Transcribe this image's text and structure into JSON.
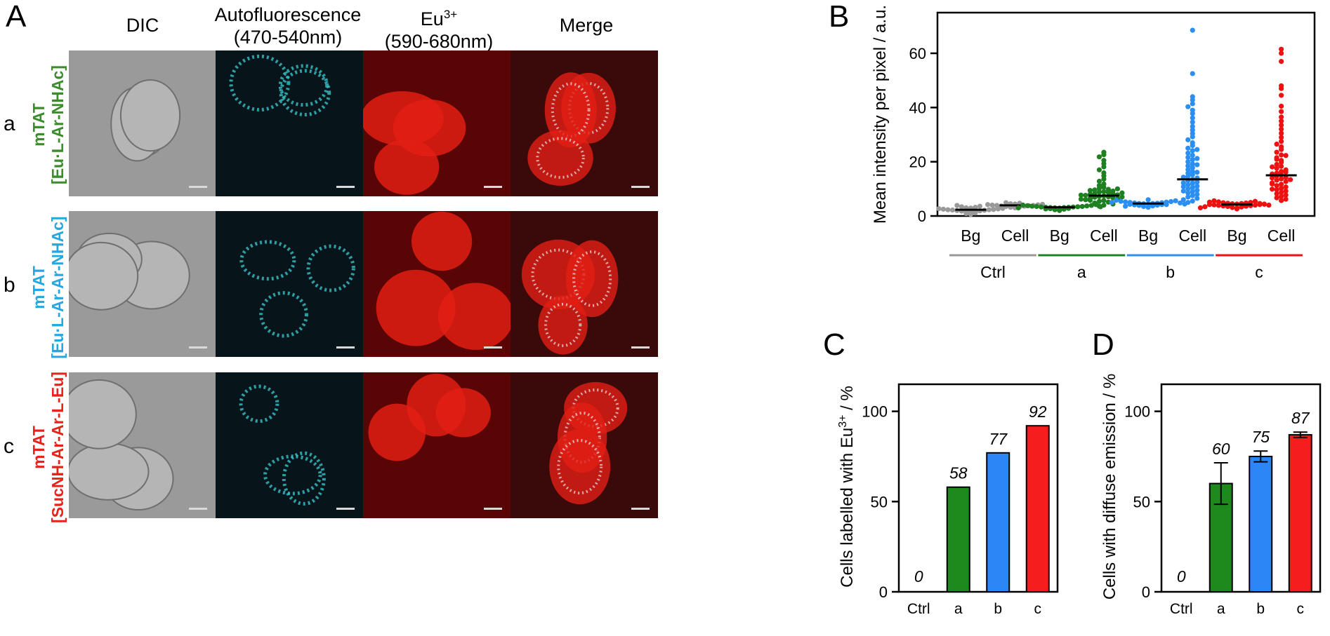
{
  "panelA": {
    "letter": "A",
    "columns": [
      {
        "line1": "DIC",
        "line2": "",
        "sup": ""
      },
      {
        "line1": "Autofluorescence",
        "line2": "(470-540nm)",
        "sup": ""
      },
      {
        "line1": "Eu",
        "line2": "(590-680nm)",
        "sup": "3+"
      },
      {
        "line1": "Merge",
        "line2": "",
        "sup": ""
      }
    ],
    "rows": [
      {
        "letter": "a",
        "line1": "mTAT",
        "line2": "[Eu·L-Ar-NHAc]",
        "color": "#3c8c2e"
      },
      {
        "letter": "b",
        "line1": "mTAT",
        "line2": "[Eu·L-Ar-Ar-NHAc]",
        "color": "#25a8e0"
      },
      {
        "letter": "c",
        "line1": "mTAT",
        "line2": "[SucNH-Ar-Ar-L-Eu]",
        "color": "#e8221b"
      }
    ],
    "tile_colors": {
      "dic": "#9a9a9a",
      "auto": "#07141a",
      "eu": "#5a0505",
      "merge": "#3a0a0a",
      "cyan": "#38c0c8",
      "red": "#e21e14"
    }
  },
  "chart_data": [
    {
      "panel": "B",
      "type": "scatter",
      "ylabel": "Mean intensity per pixel / a.u.",
      "ylim": [
        0,
        75
      ],
      "yticks": [
        0,
        20,
        40,
        60
      ],
      "categories": [
        "Bg",
        "Cell",
        "Bg",
        "Cell",
        "Bg",
        "Cell",
        "Bg",
        "Cell"
      ],
      "groups": [
        {
          "label": "Ctrl",
          "color": "#999999"
        },
        {
          "label": "a",
          "color": "#1e8020"
        },
        {
          "label": "b",
          "color": "#2a8ff0"
        },
        {
          "label": "c",
          "color": "#ee1111"
        }
      ],
      "series": [
        {
          "group": "Ctrl",
          "category": "Bg",
          "median": 2.3,
          "values": [
            0.6,
            0.9,
            1.1,
            1.3,
            1.5,
            1.6,
            1.8,
            1.9,
            2.0,
            2.1,
            2.2,
            2.3,
            2.3,
            2.4,
            2.5,
            2.6,
            2.7,
            2.8,
            2.9,
            3.0,
            3.2,
            3.4,
            3.6,
            3.9
          ]
        },
        {
          "group": "Ctrl",
          "category": "Cell",
          "median": 3.9,
          "values": [
            3.0,
            3.2,
            3.4,
            3.5,
            3.6,
            3.7,
            3.8,
            3.9,
            3.9,
            4.0,
            4.1,
            4.2,
            4.3,
            4.4,
            4.5,
            4.7,
            4.9
          ]
        },
        {
          "group": "a",
          "category": "Bg",
          "median": 3.2,
          "values": [
            2.0,
            2.3,
            2.5,
            2.7,
            2.8,
            2.9,
            3.0,
            3.1,
            3.1,
            3.2,
            3.2,
            3.3,
            3.3,
            3.4,
            3.5,
            3.5,
            3.6,
            3.7,
            3.8,
            3.9,
            4.0,
            4.2,
            2.6,
            3.0,
            3.4
          ]
        },
        {
          "group": "a",
          "category": "Cell",
          "median": 7.5,
          "values": [
            23.5,
            22.6,
            21.8,
            20.5,
            19.3,
            18.1,
            17.0,
            15.9,
            14.8,
            13.6,
            12.8,
            11.8,
            11.2,
            10.6,
            10.2,
            9.8,
            9.6,
            9.2,
            9.0,
            8.8,
            8.6,
            8.3,
            8.1,
            8.0,
            7.8,
            7.6,
            7.4,
            7.2,
            7.1,
            6.9,
            6.7,
            6.5,
            6.3,
            6.0,
            5.7,
            5.4,
            5.1,
            4.8,
            4.4,
            4.0,
            3.6,
            8.5,
            7.0,
            6.2,
            5.8,
            9.4,
            10.0,
            7.7
          ]
        },
        {
          "group": "b",
          "category": "Bg",
          "median": 4.6,
          "values": [
            3.2,
            3.5,
            3.7,
            3.9,
            4.0,
            4.1,
            4.2,
            4.3,
            4.4,
            4.5,
            4.6,
            4.6,
            4.7,
            4.8,
            4.9,
            5.0,
            5.1,
            5.2,
            5.3,
            5.4,
            5.6,
            5.8,
            6.0,
            4.2,
            4.8,
            5.0,
            3.6,
            4.4
          ]
        },
        {
          "group": "b",
          "category": "Cell",
          "median": 13.5,
          "values": [
            68.5,
            52.5,
            44.0,
            42.8,
            41.4,
            40.3,
            39.0,
            37.8,
            36.2,
            34.6,
            33.0,
            31.7,
            30.4,
            29.2,
            28.1,
            27.0,
            26.0,
            25.0,
            24.1,
            23.2,
            22.4,
            21.6,
            20.8,
            20.0,
            19.2,
            18.5,
            17.8,
            17.1,
            16.4,
            15.8,
            15.2,
            14.6,
            14.0,
            13.5,
            13.0,
            12.5,
            12.0,
            11.5,
            11.0,
            10.5,
            10.0,
            9.5,
            9.0,
            8.5,
            8.0,
            7.5,
            7.0,
            6.5,
            6.0,
            5.5,
            5.0,
            14.3,
            16.1,
            18.9,
            21.2,
            12.2,
            10.8,
            9.2,
            24.5
          ]
        },
        {
          "group": "c",
          "category": "Bg",
          "median": 4.2,
          "values": [
            2.6,
            2.9,
            3.1,
            3.3,
            3.5,
            3.6,
            3.7,
            3.8,
            3.9,
            4.0,
            4.1,
            4.2,
            4.2,
            4.3,
            4.4,
            4.5,
            4.6,
            4.7,
            4.8,
            4.9,
            5.0,
            5.2,
            5.4,
            5.6,
            3.4,
            4.0,
            4.6,
            5.1,
            3.0,
            4.4
          ]
        },
        {
          "group": "c",
          "category": "Cell",
          "median": 15.0,
          "values": [
            61.5,
            60.0,
            57.0,
            48.0,
            47.0,
            44.5,
            40.5,
            38.5,
            36.5,
            35.0,
            33.5,
            32.0,
            30.5,
            29.0,
            27.5,
            26.5,
            25.5,
            24.5,
            23.5,
            22.5,
            21.5,
            20.5,
            19.8,
            19.0,
            18.3,
            17.6,
            17.0,
            16.4,
            15.8,
            15.2,
            14.7,
            14.2,
            13.7,
            13.2,
            12.7,
            12.2,
            11.7,
            11.2,
            10.7,
            10.2,
            9.7,
            9.2,
            8.7,
            8.2,
            7.7,
            7.2,
            6.7,
            6.2,
            5.7,
            16.2,
            18.1,
            20.9,
            13.4,
            11.8,
            9.9,
            22.3,
            15.5,
            14.0
          ]
        }
      ]
    },
    {
      "panel": "C",
      "type": "bar",
      "ylabel": "Cells labelled with Eu",
      "ylabel_sup": "3+",
      "ylabel_tail": " / %",
      "ylim": [
        0,
        115
      ],
      "yticks": [
        0,
        50,
        100
      ],
      "categories": [
        "Ctrl",
        "a",
        "b",
        "c"
      ],
      "values": [
        0,
        58,
        77,
        92
      ],
      "labels": [
        "0",
        "58",
        "77",
        "92"
      ],
      "colors": [
        "#ffffff",
        "#1e8a1e",
        "#2c86f5",
        "#f51d1d"
      ],
      "errors": [
        0,
        0,
        0,
        0
      ]
    },
    {
      "panel": "D",
      "type": "bar",
      "ylabel": "Cells with diffuse emission / %",
      "ylim": [
        0,
        115
      ],
      "yticks": [
        0,
        50,
        100
      ],
      "categories": [
        "Ctrl",
        "a",
        "b",
        "c"
      ],
      "values": [
        0,
        60,
        75,
        87
      ],
      "labels": [
        "0",
        "60",
        "75",
        "87"
      ],
      "colors": [
        "#ffffff",
        "#1e8a1e",
        "#2c86f5",
        "#f51d1d"
      ],
      "errors": [
        0,
        11.5,
        3,
        1.5
      ]
    }
  ],
  "letters": {
    "B": "B",
    "C": "C",
    "D": "D"
  }
}
